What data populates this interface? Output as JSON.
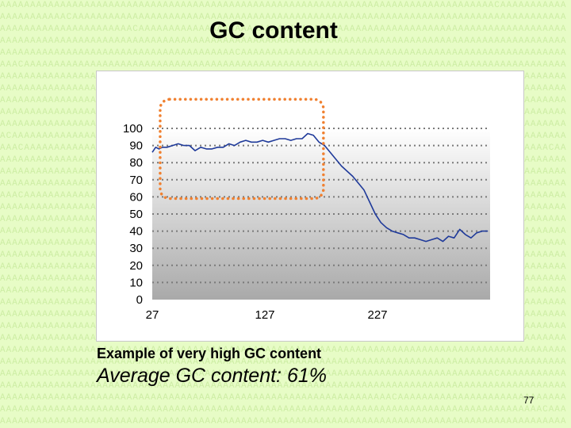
{
  "slide": {
    "title": "GC content",
    "caption": "Example of very high GC content",
    "average": "Average GC content: 61%",
    "page_number": "77"
  },
  "colors": {
    "background": "#e7fcc6",
    "line": "#1f3a9a",
    "highlight": "#f08030"
  },
  "chart_data": {
    "type": "line",
    "title": "",
    "xlabel": "",
    "ylabel": "",
    "ylim": [
      0,
      100
    ],
    "yticks": [
      0,
      10,
      20,
      30,
      40,
      50,
      60,
      70,
      80,
      90,
      100
    ],
    "xlim": [
      27,
      327
    ],
    "xticks": [
      27,
      127,
      227
    ],
    "grid": "dotted horizontal lines",
    "highlight_region": {
      "x": [
        34,
        179
      ],
      "y": [
        59,
        117
      ]
    },
    "series": [
      {
        "x": [
          27,
          30,
          33,
          36,
          40,
          45,
          50,
          55,
          60,
          65,
          70,
          75,
          80,
          85,
          90,
          95,
          100,
          105,
          110,
          115,
          120,
          125,
          130,
          135,
          140,
          145,
          150,
          155,
          160,
          165,
          170,
          175,
          180,
          185,
          190,
          195,
          200,
          205,
          210,
          215,
          220,
          225,
          230,
          235,
          240,
          245,
          250,
          255,
          260,
          265,
          270,
          275,
          280,
          285,
          290,
          295,
          300,
          305,
          310,
          315,
          320,
          325
        ],
        "values": [
          86,
          89,
          88,
          89,
          89,
          90,
          91,
          90,
          90,
          87,
          89,
          88,
          88,
          89,
          89,
          91,
          90,
          92,
          93,
          92,
          92,
          93,
          92,
          93,
          94,
          94,
          93,
          94,
          94,
          97,
          96,
          92,
          90,
          86,
          82,
          78,
          75,
          72,
          68,
          64,
          57,
          50,
          45,
          42,
          40,
          39,
          38,
          36,
          36,
          35,
          34,
          35,
          36,
          34,
          37,
          36,
          41,
          38,
          36,
          39,
          40,
          40
        ]
      }
    ]
  }
}
